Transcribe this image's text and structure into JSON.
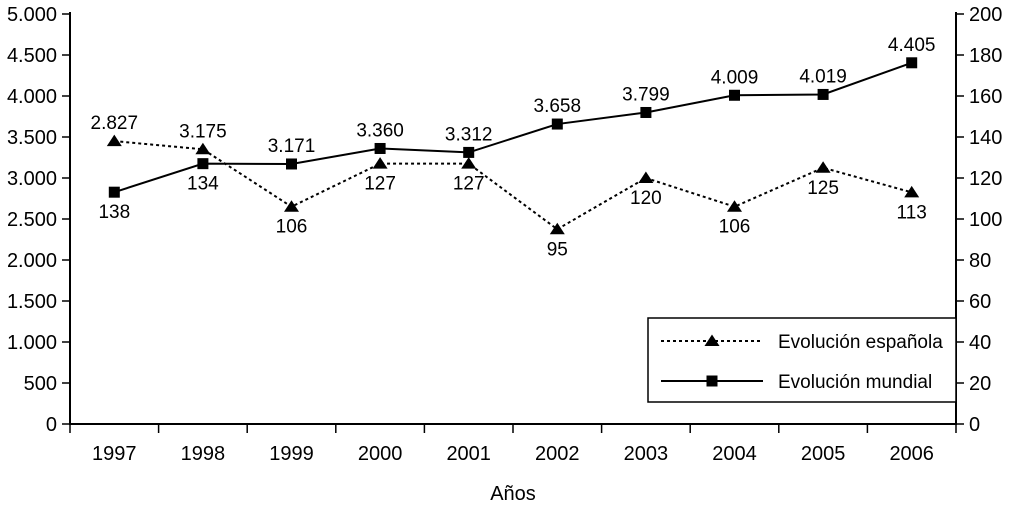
{
  "chart_data": {
    "type": "line",
    "title": "",
    "xlabel": "Años",
    "categories": [
      "1997",
      "1998",
      "1999",
      "2000",
      "2001",
      "2002",
      "2003",
      "2004",
      "2005",
      "2006"
    ],
    "left_axis": {
      "min": 0,
      "max": 5000,
      "step": 500,
      "tick_labels": [
        "0",
        "500",
        "1.000",
        "1.500",
        "2.000",
        "2.500",
        "3.000",
        "3.500",
        "4.000",
        "4.500",
        "5.000"
      ]
    },
    "right_axis": {
      "min": 0,
      "max": 200,
      "step": 20,
      "tick_labels": [
        "0",
        "20",
        "40",
        "60",
        "80",
        "100",
        "120",
        "140",
        "160",
        "180",
        "200"
      ]
    },
    "series": [
      {
        "name": "Evolución española",
        "axis": "right",
        "line_style": "dashed",
        "marker": "triangle",
        "color": "#000000",
        "label_placement": "below",
        "values": [
          138,
          134,
          106,
          127,
          127,
          95,
          120,
          106,
          125,
          113
        ],
        "point_labels": [
          "138",
          "134",
          "106",
          "127",
          "127",
          "95",
          "120",
          "106",
          "125",
          "113"
        ]
      },
      {
        "name": "Evolución mundial",
        "axis": "left",
        "line_style": "solid",
        "marker": "square",
        "color": "#000000",
        "label_placement": "above",
        "values": [
          2827,
          3175,
          3171,
          3360,
          3312,
          3658,
          3799,
          4009,
          4019,
          4405
        ],
        "point_labels": [
          "2.827",
          "3.175",
          "3.171",
          "3.360",
          "3.312",
          "3.658",
          "3.799",
          "4.009",
          "4.019",
          "4.405"
        ]
      }
    ],
    "legend": {
      "position": "inside bottom-right",
      "entries": [
        "Evolución española",
        "Evolución mundial"
      ]
    },
    "grid": false,
    "background": "#ffffff",
    "axis_color": "#000000"
  }
}
